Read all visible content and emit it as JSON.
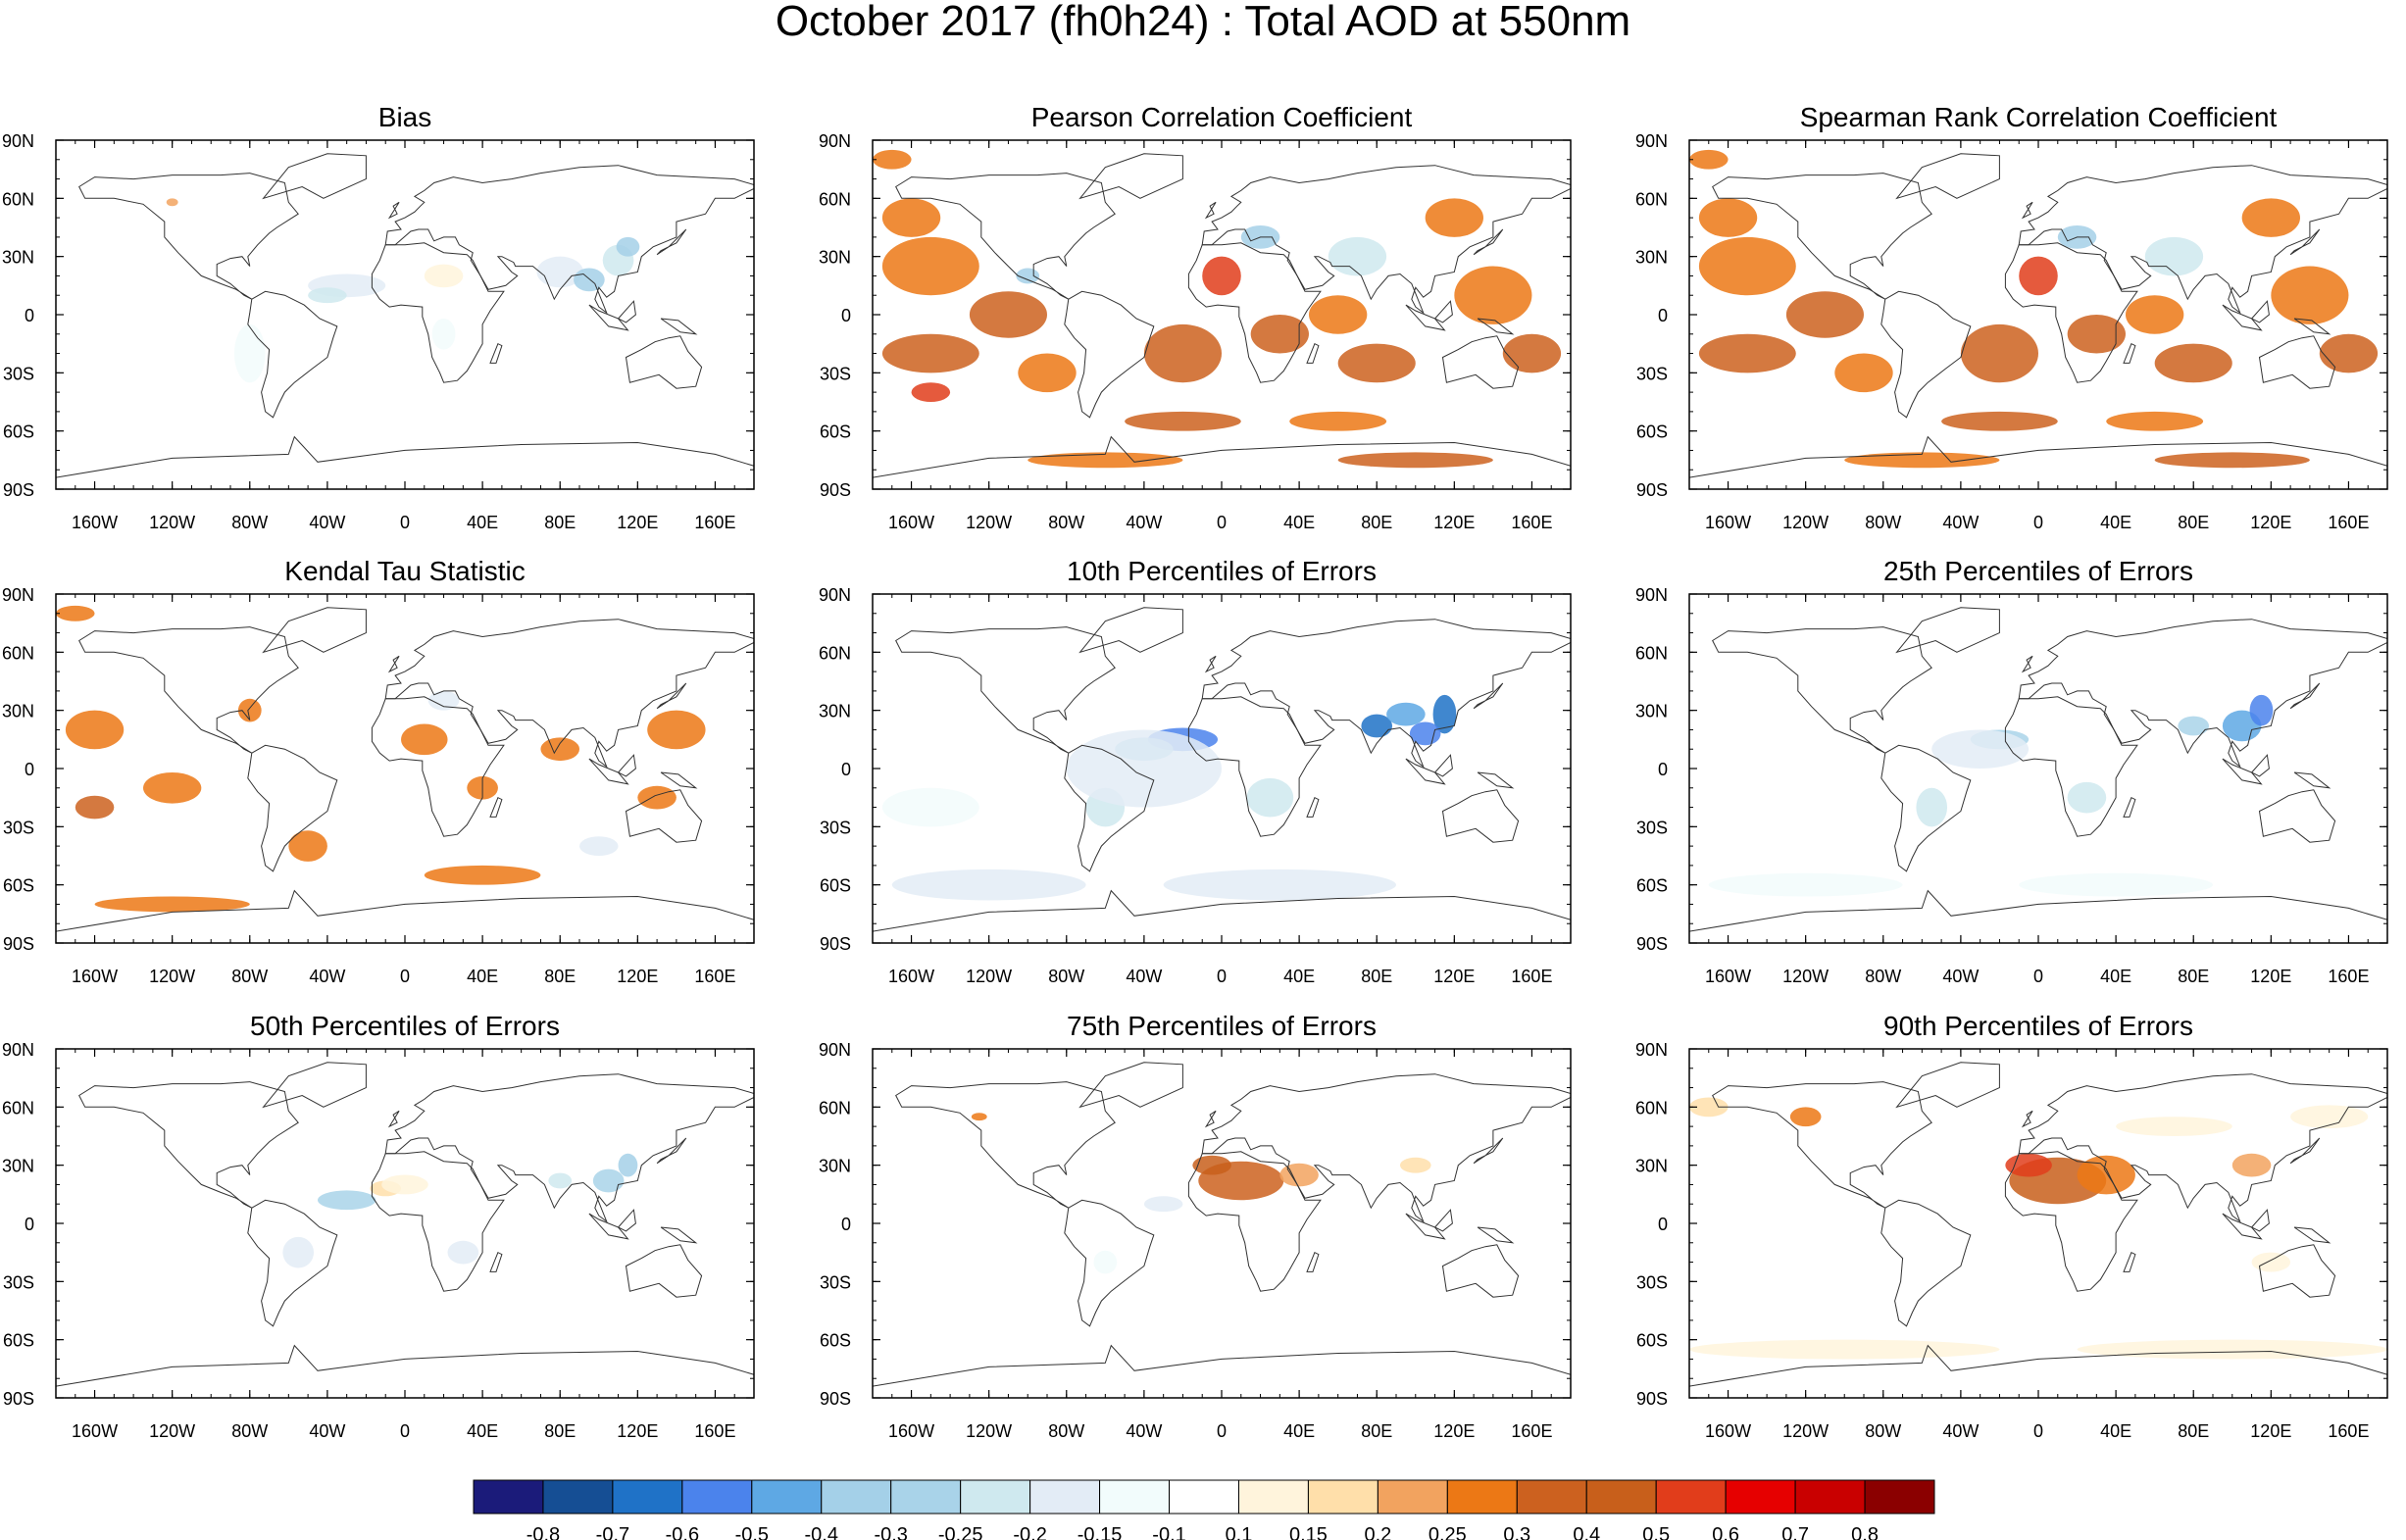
{
  "title": "October 2017 (fh0h24) : Total AOD at 550nm",
  "lat_tick_labels": [
    "90N",
    "60N",
    "30N",
    "0",
    "30S",
    "60S",
    "90S"
  ],
  "lon_tick_labels": [
    "160W",
    "120W",
    "80W",
    "40W",
    "0",
    "40E",
    "80E",
    "120E",
    "160E"
  ],
  "colorbar": {
    "colors": [
      "#1b1b7a",
      "#154e94",
      "#1f72c7",
      "#4b83ec",
      "#5ea8e4",
      "#a4d0e8",
      "#a9d3e9",
      "#cfe9ef",
      "#e3ecf6",
      "#f2fcfc",
      "#ffffff",
      "#fff4dc",
      "#ffdfaa",
      "#f2a35f",
      "#ec7815",
      "#cc611f",
      "#c85f1b",
      "#e13d1b",
      "#e60000",
      "#c90000",
      "#8b0000"
    ],
    "labels": [
      "-0.8",
      "-0.7",
      "-0.6",
      "-0.5",
      "-0.4",
      "-0.3",
      "-0.25",
      "-0.2",
      "-0.15",
      "-0.1",
      "0.1",
      "0.15",
      "0.2",
      "0.25",
      "0.3",
      "0.4",
      "0.5",
      "0.6",
      "0.7",
      "0.8"
    ]
  },
  "chart_data": [
    {
      "type": "heatmap",
      "title": "Bias",
      "pattern": "weak blue over Sahara/Atlantic dust belt, India and East Asia; near zero elsewhere"
    },
    {
      "type": "heatmap",
      "title": "Pearson Correlation Coefficient",
      "pattern": "widespread orange/red positive values over oceans and land; blue patches over Eurasia"
    },
    {
      "type": "heatmap",
      "title": "Spearman Rank Correlation Coefficient",
      "pattern": "widespread orange/red positive values similar to Pearson"
    },
    {
      "type": "heatmap",
      "title": "Kendal Tau Statistic",
      "pattern": "orange positive patches over oceans, fewer than correlation maps"
    },
    {
      "type": "heatmap",
      "title": "10th Percentiles of Errors",
      "pattern": "blue negative errors over Saharan outflow, India and East China; light blue globally"
    },
    {
      "type": "heatmap",
      "title": "25th Percentiles of Errors",
      "pattern": "moderate blue over India/East Asia and tropical Atlantic"
    },
    {
      "type": "heatmap",
      "title": "50th Percentiles of Errors",
      "pattern": "light blue over tropical Atlantic, India, East Asia"
    },
    {
      "type": "heatmap",
      "title": "75th Percentiles of Errors",
      "pattern": "orange positive errors over Sahara and Arabia"
    },
    {
      "type": "heatmap",
      "title": "90th Percentiles of Errors",
      "pattern": "strong orange/red over Sahara, Middle East, East China; pale orange Southern Ocean"
    }
  ]
}
